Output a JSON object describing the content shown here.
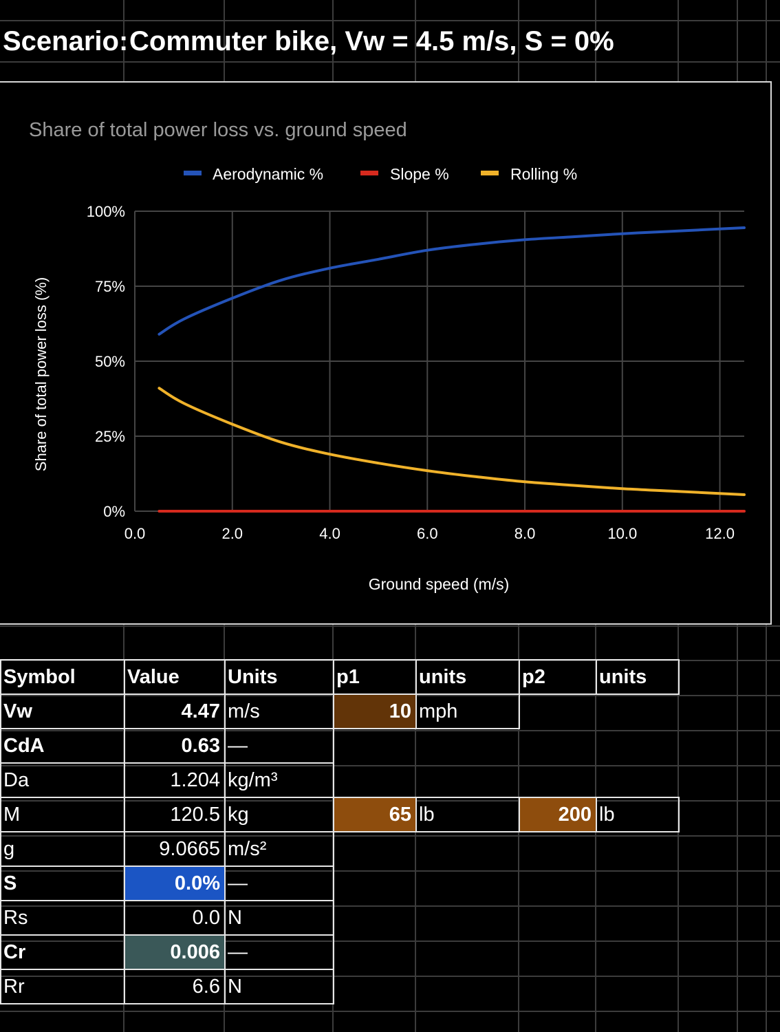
{
  "sheet_title": {
    "label": "Scenario:",
    "value": "Commuter bike, Vw = 4.5 m/s, S = 0%"
  },
  "colors": {
    "aero": "#2453b8",
    "slope": "#d62a1e",
    "rolling": "#f0b22a",
    "brown_dark": "#623408",
    "brown": "#8e4d0d",
    "blue_cell": "#1b55c4",
    "teal_cell": "#3a5858"
  },
  "chart_data": {
    "type": "line",
    "title": "Share of total power loss vs. ground speed",
    "xlabel": "Ground speed (m/s)",
    "ylabel": "Share of total power loss (%)",
    "xlim": [
      0,
      12.5
    ],
    "ylim": [
      0,
      100
    ],
    "x_ticks": [
      "0.0",
      "2.0",
      "4.0",
      "6.0",
      "8.0",
      "10.0",
      "12.0"
    ],
    "y_ticks": [
      "0%",
      "25%",
      "50%",
      "75%",
      "100%"
    ],
    "legend_position": "top-center",
    "grid": true,
    "x": [
      0.5,
      1,
      2,
      3,
      4,
      5,
      6,
      7,
      8,
      9,
      10,
      11,
      12.5
    ],
    "series": [
      {
        "name": "Aerodynamic %",
        "values": [
          59,
          64,
          71,
          77,
          81,
          84,
          87,
          89,
          90.5,
          91.5,
          92.5,
          93.3,
          94.5
        ]
      },
      {
        "name": "Slope %",
        "values": [
          0,
          0,
          0,
          0,
          0,
          0,
          0,
          0,
          0,
          0,
          0,
          0,
          0
        ]
      },
      {
        "name": "Rolling %",
        "values": [
          41,
          36,
          29,
          23,
          19,
          16,
          13.5,
          11.5,
          9.8,
          8.6,
          7.5,
          6.7,
          5.5
        ]
      }
    ]
  },
  "table": {
    "headers": [
      "Symbol",
      "Value",
      "Units",
      "p1",
      "units",
      "p2",
      "units"
    ],
    "rows": [
      {
        "symbol": "Vw",
        "value": "4.47",
        "units": "m/s",
        "p1": "10",
        "p1_units": "mph",
        "p2": "",
        "p2_units": ""
      },
      {
        "symbol": "CdA",
        "value": "0.63",
        "units": "—",
        "p1": "",
        "p1_units": "",
        "p2": "",
        "p2_units": ""
      },
      {
        "symbol": "Da",
        "value": "1.204",
        "units": "kg/m³",
        "p1": "",
        "p1_units": "",
        "p2": "",
        "p2_units": ""
      },
      {
        "symbol": "M",
        "value": "120.5",
        "units": "kg",
        "p1": "65",
        "p1_units": "lb",
        "p2": "200",
        "p2_units": "lb"
      },
      {
        "symbol": "g",
        "value": "9.0665",
        "units": "m/s²",
        "p1": "",
        "p1_units": "",
        "p2": "",
        "p2_units": ""
      },
      {
        "symbol": "S",
        "value": "0.0%",
        "units": "—",
        "p1": "",
        "p1_units": "",
        "p2": "",
        "p2_units": ""
      },
      {
        "symbol": "Rs",
        "value": "0.0",
        "units": "N",
        "p1": "",
        "p1_units": "",
        "p2": "",
        "p2_units": ""
      },
      {
        "symbol": "Cr",
        "value": "0.006",
        "units": "—",
        "p1": "",
        "p1_units": "",
        "p2": "",
        "p2_units": ""
      },
      {
        "symbol": "Rr",
        "value": "6.6",
        "units": "N",
        "p1": "",
        "p1_units": "",
        "p2": "",
        "p2_units": ""
      }
    ]
  }
}
